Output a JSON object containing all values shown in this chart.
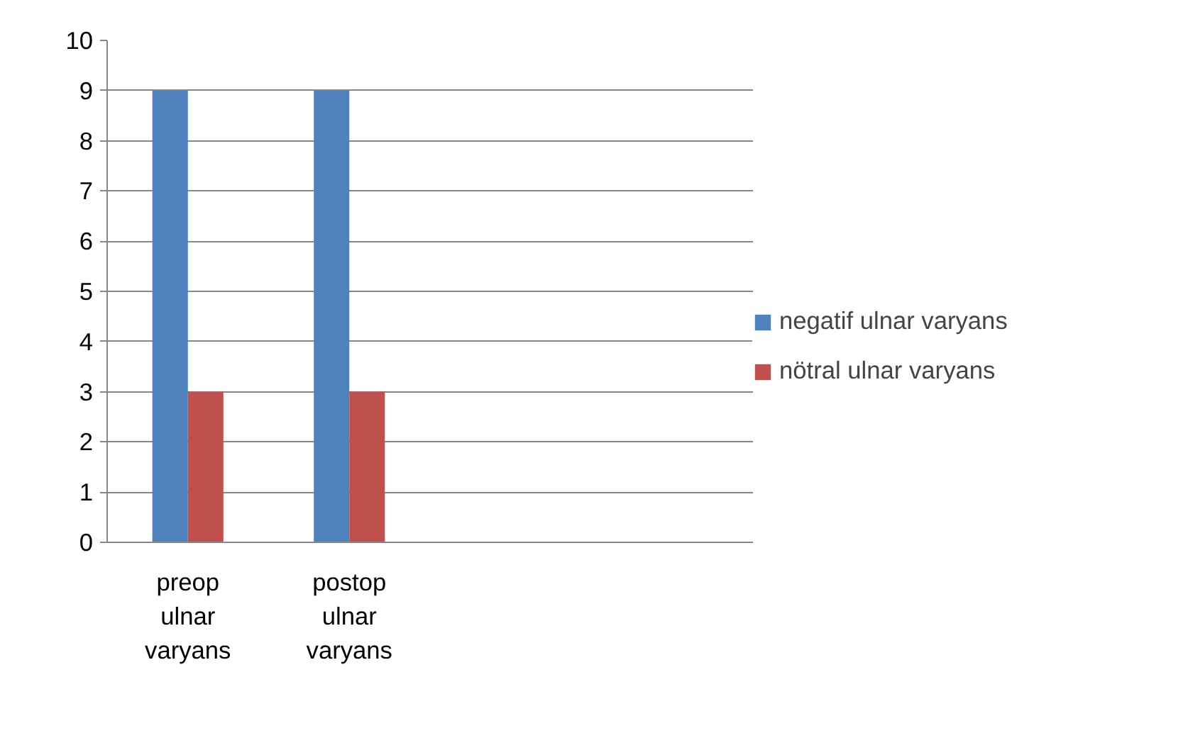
{
  "chart_data": {
    "type": "bar",
    "categories": [
      "preop ulnar varyans",
      "postop ulnar varyans",
      null,
      null
    ],
    "series": [
      {
        "name": "negatif ulnar varyans",
        "color": "#4f81bd",
        "values": [
          9,
          9,
          null,
          null
        ]
      },
      {
        "name": "nötral ulnar varyans",
        "color": "#c0504d",
        "values": [
          3,
          3,
          null,
          null
        ]
      }
    ],
    "ylim": [
      0,
      10
    ],
    "yticks": [
      0,
      1,
      2,
      3,
      4,
      5,
      6,
      7,
      8,
      9,
      10
    ],
    "grid": "y",
    "legend": "right"
  }
}
